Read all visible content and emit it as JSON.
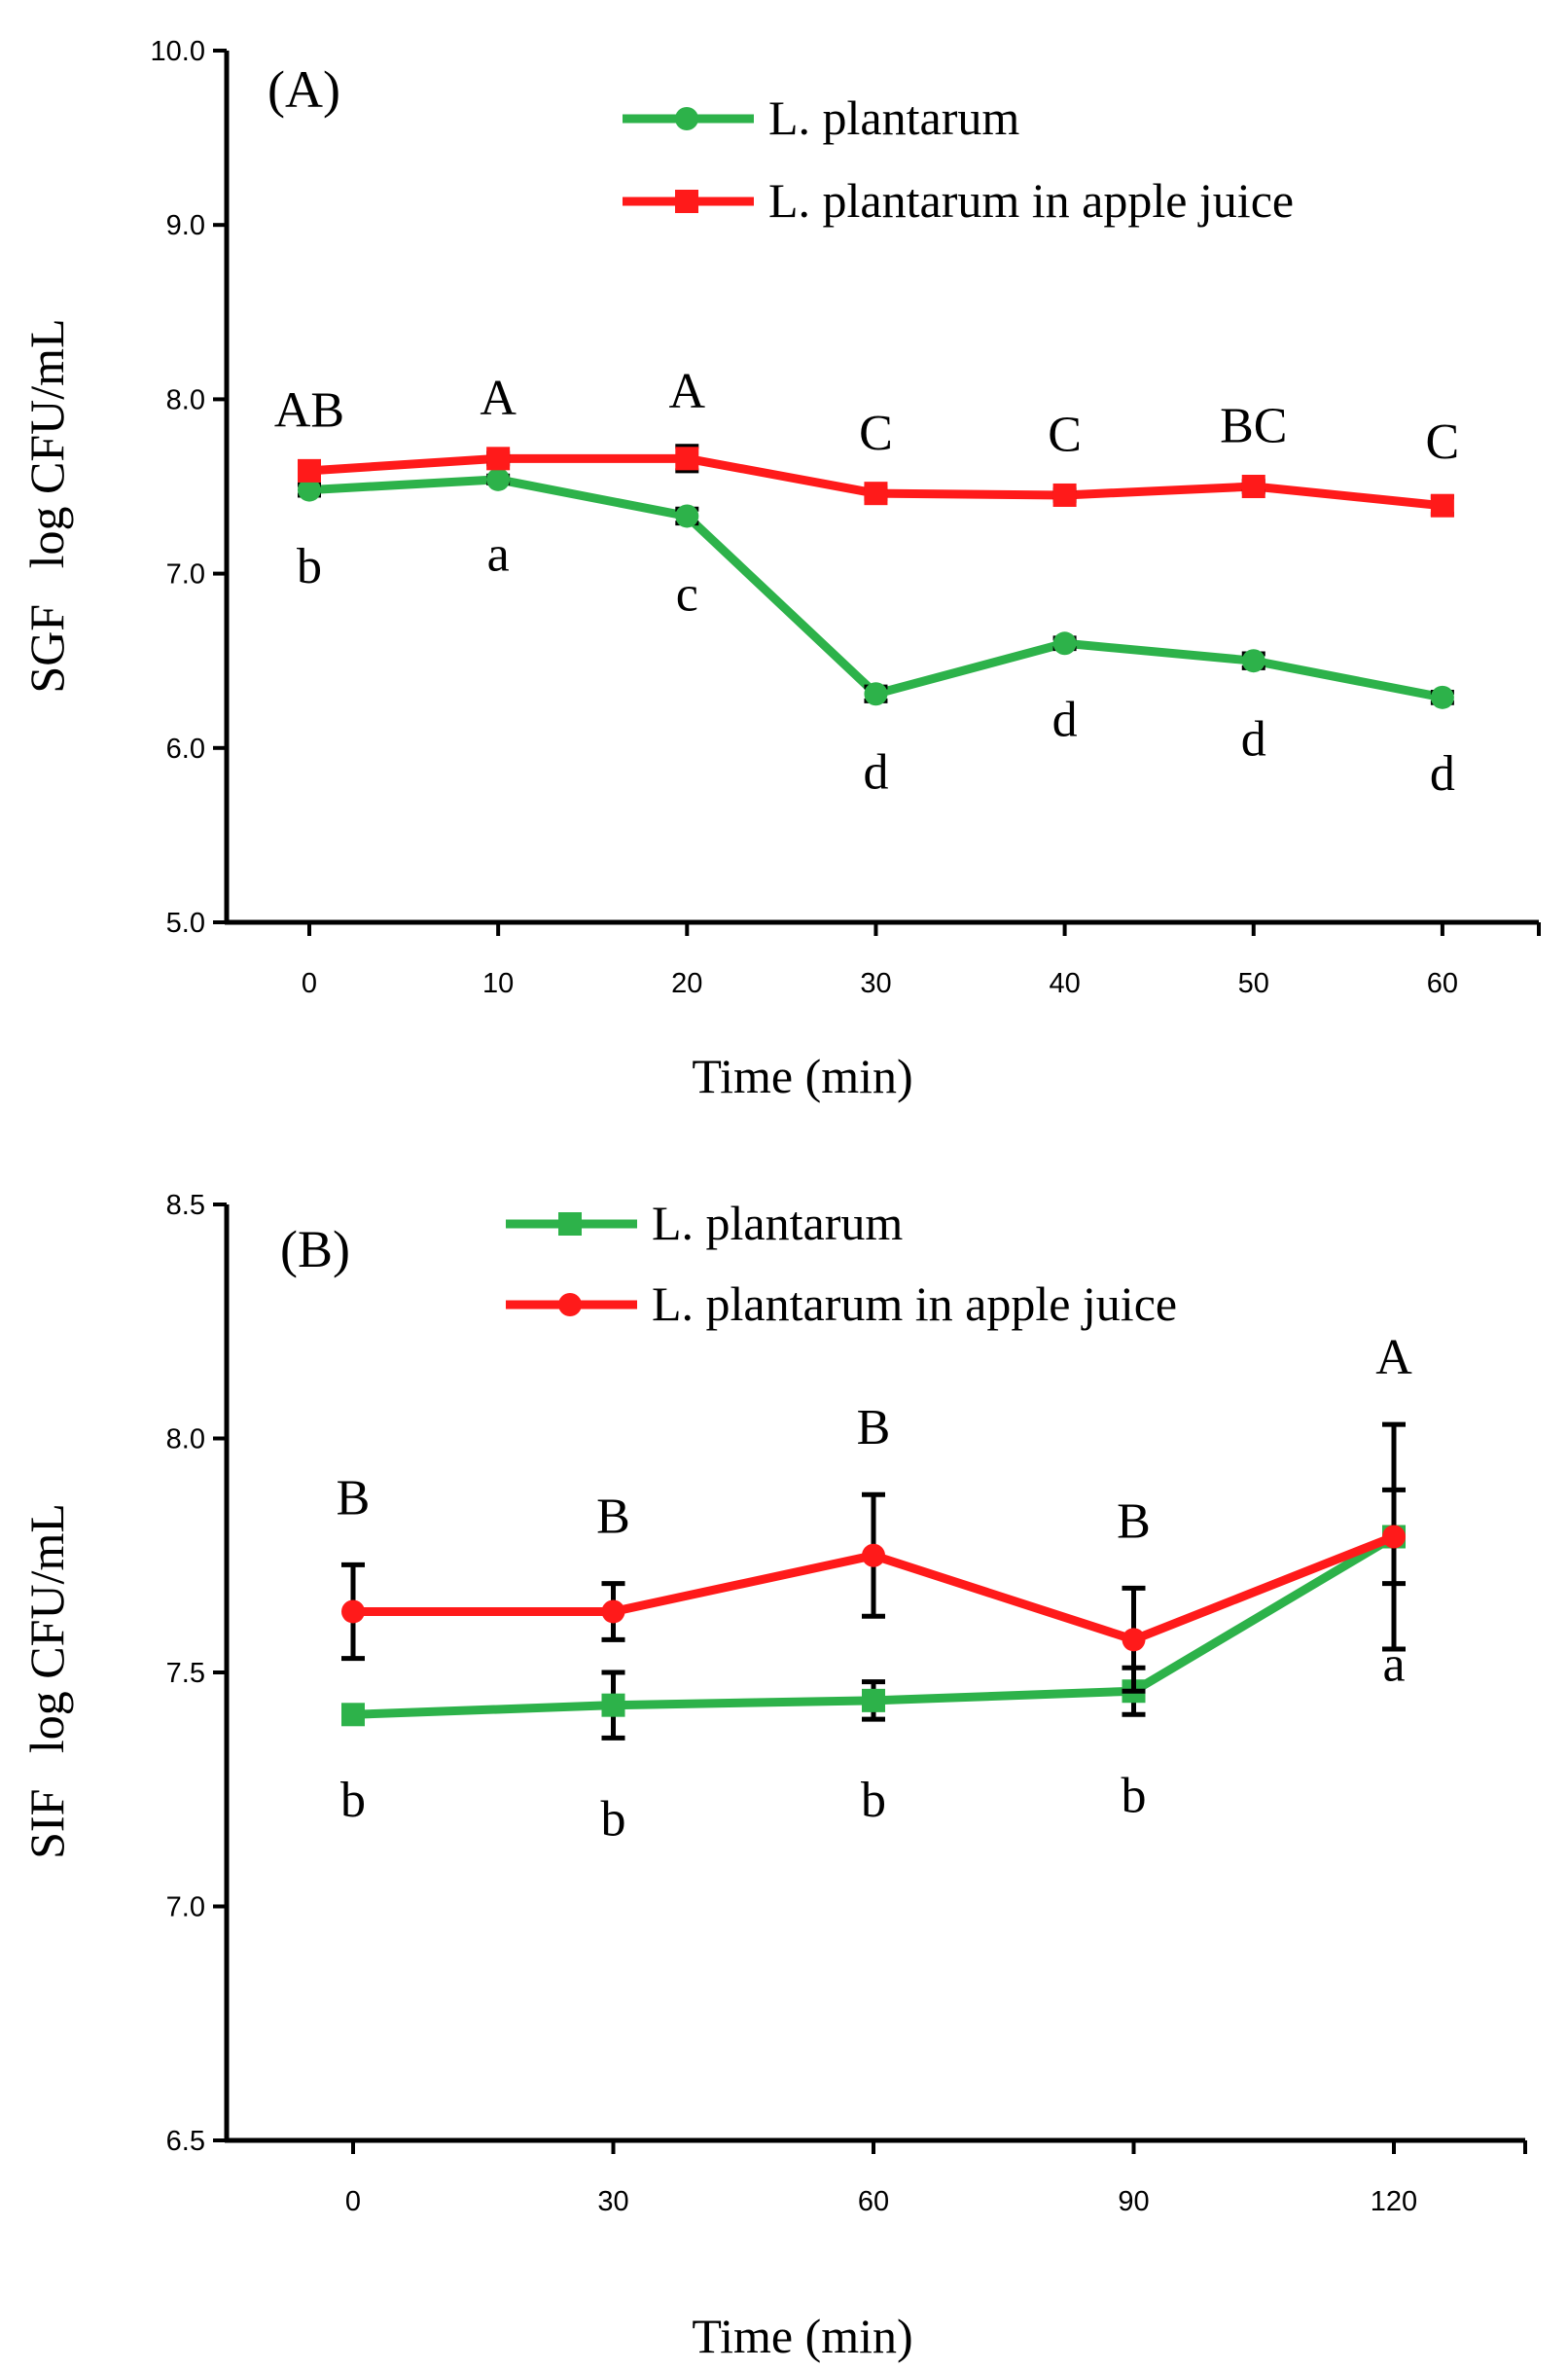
{
  "chart_data": [
    {
      "type": "line",
      "panel_label": "(A)",
      "xlabel": "Time (min)",
      "ylabel_prefix": "SGF",
      "ylabel": "log CFU/mL",
      "x_ticks": [
        0,
        10,
        20,
        30,
        40,
        50,
        60
      ],
      "x_tick_labels": [
        "0",
        "10",
        "20",
        "30",
        "40",
        "50",
        "60"
      ],
      "xlim": [
        -5,
        65
      ],
      "ylim": [
        5.0,
        10.0
      ],
      "y_ticks": [
        5.0,
        6.0,
        7.0,
        8.0,
        9.0,
        10.0
      ],
      "y_tick_labels": [
        "5.0",
        "6.0",
        "7.0",
        "8.0",
        "9.0",
        "10.0"
      ],
      "legend_position": "top-right",
      "series": [
        {
          "name": "L. plantarum",
          "color": "#2db24a",
          "marker": "circle",
          "x": [
            0,
            10,
            20,
            30,
            40,
            50,
            60
          ],
          "values": [
            7.48,
            7.54,
            7.33,
            6.31,
            6.6,
            6.5,
            6.29
          ],
          "errors": [
            0.03,
            0.02,
            0.04,
            0.04,
            0.03,
            0.04,
            0.03
          ],
          "significance": [
            "b",
            "a",
            "c",
            "d",
            "d",
            "d",
            "d"
          ],
          "sig_position": "below"
        },
        {
          "name": "L. plantarum in apple juice",
          "color": "#ff1a1a",
          "marker": "square",
          "x": [
            0,
            10,
            20,
            30,
            40,
            50,
            60
          ],
          "values": [
            7.59,
            7.66,
            7.66,
            7.46,
            7.45,
            7.5,
            7.39
          ],
          "errors": [
            0.03,
            0.03,
            0.07,
            0.03,
            0.03,
            0.03,
            0.05
          ],
          "significance": [
            "AB",
            "A",
            "A",
            "C",
            "C",
            "BC",
            "C"
          ],
          "sig_position": "above"
        }
      ]
    },
    {
      "type": "line",
      "panel_label": "(B)",
      "xlabel": "Time (min)",
      "ylabel_prefix": "SIF",
      "ylabel": "log CFU/mL",
      "x_ticks": [
        0,
        30,
        60,
        90,
        120
      ],
      "x_tick_labels": [
        "0",
        "30",
        "60",
        "90",
        "120"
      ],
      "xlim": [
        -15,
        135
      ],
      "ylim": [
        6.5,
        8.5
      ],
      "y_ticks": [
        6.5,
        7.0,
        7.5,
        8.0,
        8.5
      ],
      "y_tick_labels": [
        "6.5",
        "7.0",
        "7.5",
        "8.0",
        "8.5"
      ],
      "legend_position": "top-center",
      "series": [
        {
          "name": "L. plantarum",
          "color": "#2db24a",
          "marker": "square",
          "x": [
            0,
            30,
            60,
            90,
            120
          ],
          "values": [
            7.41,
            7.43,
            7.44,
            7.46,
            7.79
          ],
          "errors": [
            0.01,
            0.07,
            0.04,
            0.05,
            0.1
          ],
          "significance": [
            "b",
            "b",
            "b",
            "b",
            "a"
          ],
          "sig_position": "below"
        },
        {
          "name": "L. plantarum in apple juice",
          "color": "#ff1a1a",
          "marker": "circle",
          "x": [
            0,
            30,
            60,
            90,
            120
          ],
          "values": [
            7.63,
            7.63,
            7.75,
            7.57,
            7.79
          ],
          "errors": [
            0.1,
            0.06,
            0.13,
            0.11,
            0.24
          ],
          "significance": [
            "B",
            "B",
            "B",
            "B",
            "A"
          ],
          "sig_position": "above"
        }
      ]
    }
  ]
}
